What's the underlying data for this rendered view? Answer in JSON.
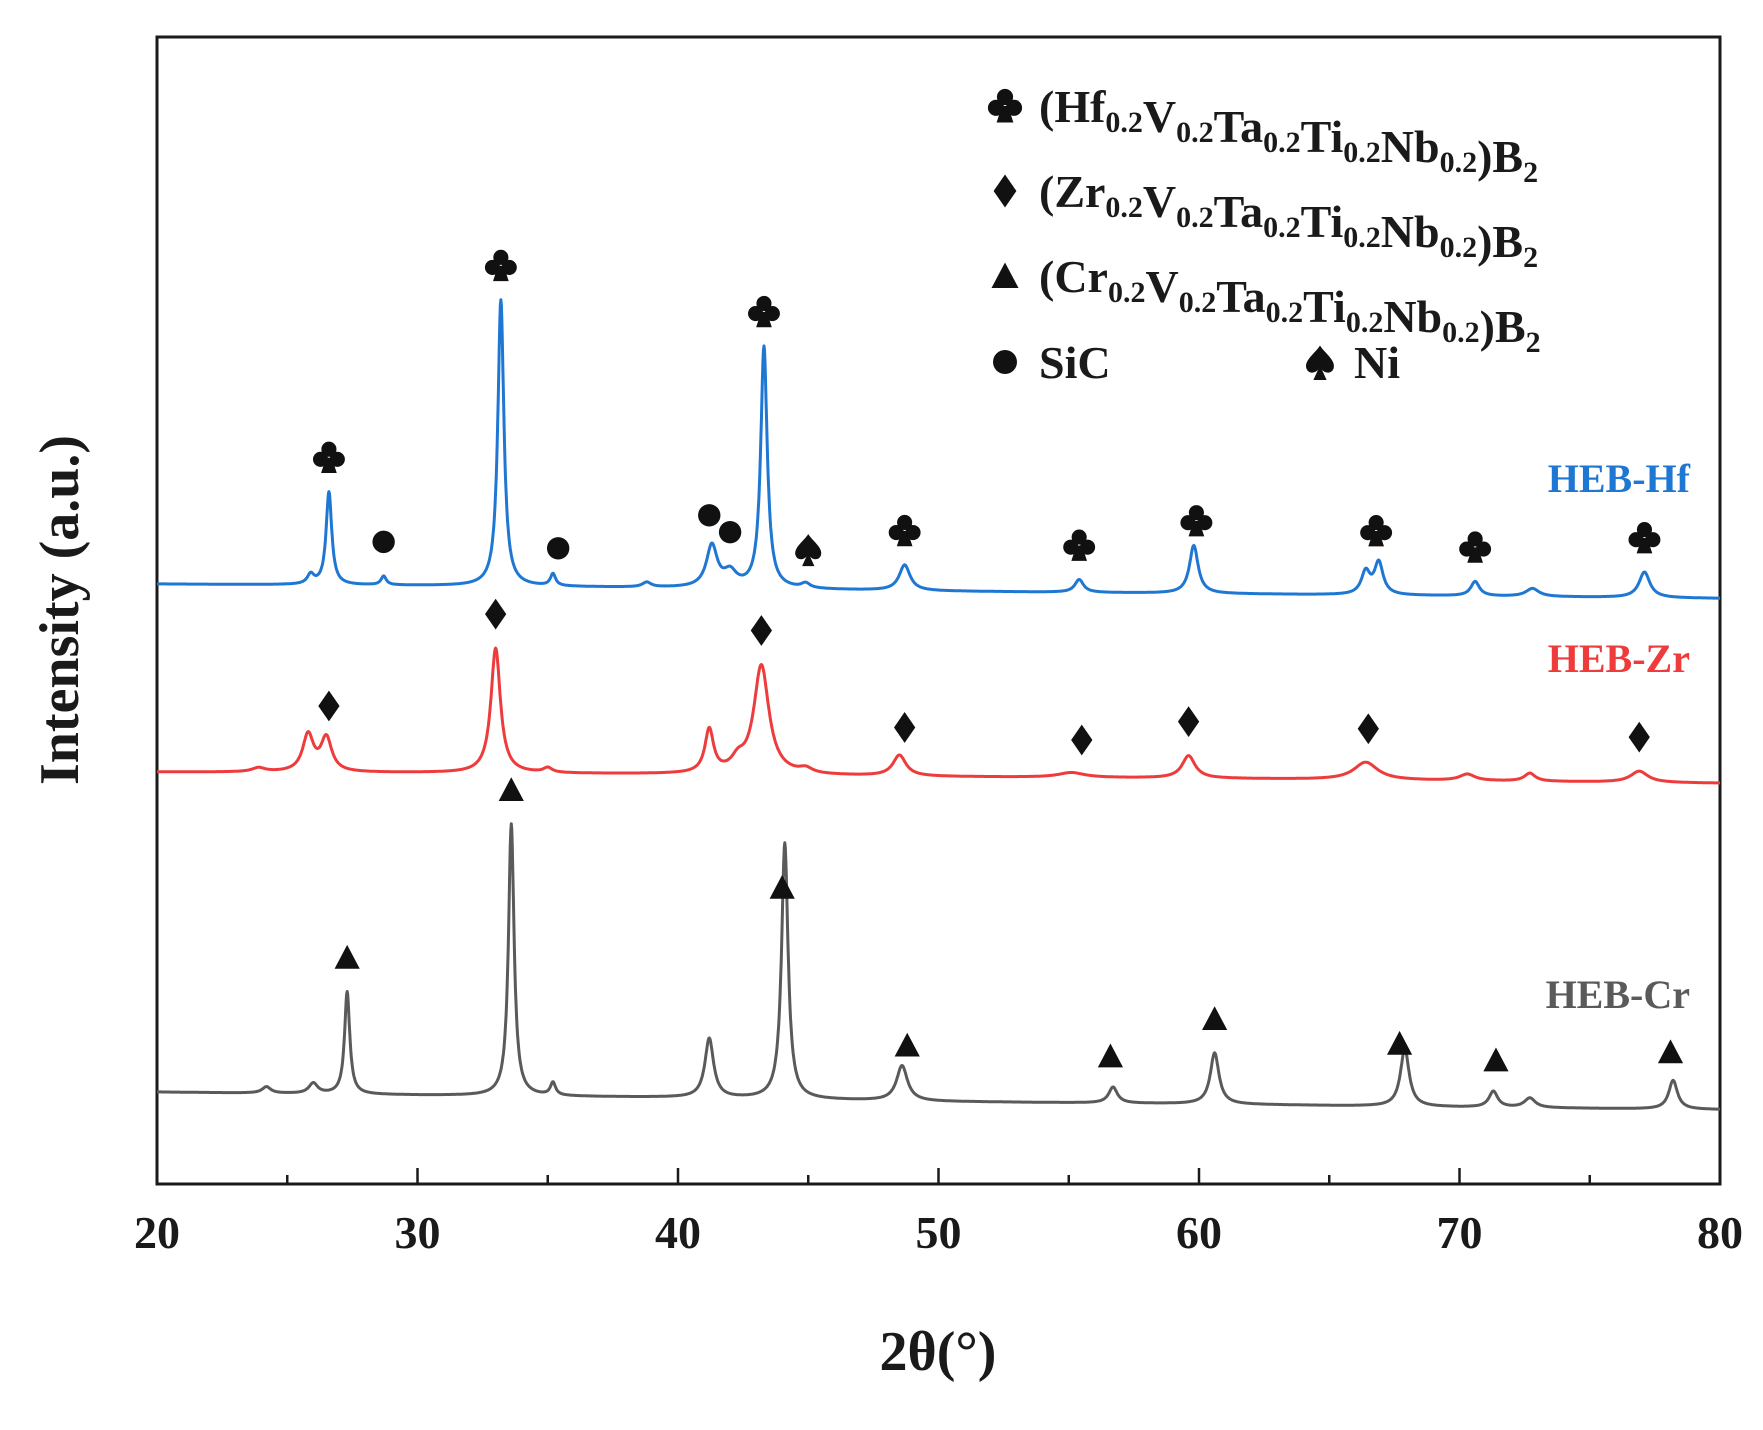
{
  "chart_data": {
    "type": "line",
    "title": "",
    "xlabel": "2θ(°)",
    "ylabel": "Intensity (a.u.)",
    "xlim": [
      20,
      80
    ],
    "xticks": [
      "20",
      "30",
      "40",
      "50",
      "60",
      "70",
      "80"
    ],
    "y_scale": "arbitrary units, curves vertically offset",
    "grid": false,
    "legend_position": "top-right",
    "legend": [
      {
        "marker": "club",
        "label": "(Hf0.2V0.2Ta0.2Ti0.2Nb0.2)B2",
        "parts": [
          [
            "(Hf",
            ""
          ],
          [
            "0.2",
            "sub"
          ],
          [
            "V",
            ""
          ],
          [
            "0.2",
            "sub"
          ],
          [
            "Ta",
            ""
          ],
          [
            "0.2",
            "sub"
          ],
          [
            "Ti",
            ""
          ],
          [
            "0.2",
            "sub"
          ],
          [
            "Nb",
            ""
          ],
          [
            "0.2",
            "sub"
          ],
          [
            ")B",
            ""
          ],
          [
            "2",
            "sub"
          ]
        ]
      },
      {
        "marker": "diamond",
        "label": "(Zr0.2V0.2Ta0.2Ti0.2Nb0.2)B2",
        "parts": [
          [
            "(Zr",
            ""
          ],
          [
            "0.2",
            "sub"
          ],
          [
            "V",
            ""
          ],
          [
            "0.2",
            "sub"
          ],
          [
            "Ta",
            ""
          ],
          [
            "0.2",
            "sub"
          ],
          [
            "Ti",
            ""
          ],
          [
            "0.2",
            "sub"
          ],
          [
            "Nb",
            ""
          ],
          [
            "0.2",
            "sub"
          ],
          [
            ")B",
            ""
          ],
          [
            "2",
            "sub"
          ]
        ]
      },
      {
        "marker": "triangle",
        "label": "(Cr0.2V0.2Ta0.2Ti0.2Nb0.2)B2",
        "parts": [
          [
            "(Cr",
            ""
          ],
          [
            "0.2",
            "sub"
          ],
          [
            "V",
            ""
          ],
          [
            "0.2",
            "sub"
          ],
          [
            "Ta",
            ""
          ],
          [
            "0.2",
            "sub"
          ],
          [
            "Ti",
            ""
          ],
          [
            "0.2",
            "sub"
          ],
          [
            "Nb",
            ""
          ],
          [
            "0.2",
            "sub"
          ],
          [
            ")B",
            ""
          ],
          [
            "2",
            "sub"
          ]
        ]
      },
      {
        "marker": "circle",
        "label": "SiC"
      },
      {
        "marker": "spade",
        "label": "Ni"
      }
    ],
    "series": [
      {
        "name": "HEB-Hf",
        "color": "#1f77d4",
        "baseline": [
          [
            20,
            0.0
          ],
          [
            30,
            -0.1
          ],
          [
            40,
            -0.25
          ],
          [
            50,
            -0.45
          ],
          [
            60,
            -0.6
          ],
          [
            70,
            -0.75
          ],
          [
            80,
            -0.9
          ]
        ],
        "peaks": [
          {
            "x": 25.9,
            "h": 0.6,
            "w": 0.15
          },
          {
            "x": 26.6,
            "h": 5.8,
            "w": 0.13
          },
          {
            "x": 28.7,
            "h": 0.55,
            "w": 0.12
          },
          {
            "x": 33.2,
            "h": 17.9,
            "w": 0.14
          },
          {
            "x": 35.2,
            "h": 0.75,
            "w": 0.12
          },
          {
            "x": 38.8,
            "h": 0.3,
            "w": 0.2
          },
          {
            "x": 41.3,
            "h": 2.6,
            "w": 0.25
          },
          {
            "x": 42.0,
            "h": 0.9,
            "w": 0.3
          },
          {
            "x": 43.3,
            "h": 15.1,
            "w": 0.15
          },
          {
            "x": 44.9,
            "h": 0.3,
            "w": 0.2
          },
          {
            "x": 48.7,
            "h": 1.6,
            "w": 0.25
          },
          {
            "x": 55.4,
            "h": 0.8,
            "w": 0.2
          },
          {
            "x": 59.8,
            "h": 3.0,
            "w": 0.2
          },
          {
            "x": 66.4,
            "h": 1.4,
            "w": 0.2
          },
          {
            "x": 66.9,
            "h": 2.0,
            "w": 0.2
          },
          {
            "x": 70.6,
            "h": 0.9,
            "w": 0.2
          },
          {
            "x": 72.8,
            "h": 0.5,
            "w": 0.3
          },
          {
            "x": 77.1,
            "h": 1.6,
            "w": 0.25
          }
        ],
        "markers": [
          {
            "symbol": "club",
            "x": 26.6
          },
          {
            "symbol": "circle",
            "x": 28.7
          },
          {
            "symbol": "club",
            "x": 33.2
          },
          {
            "symbol": "circle",
            "x": 35.4
          },
          {
            "symbol": "circle",
            "x": 41.2
          },
          {
            "symbol": "circle",
            "x": 42.0
          },
          {
            "symbol": "club",
            "x": 43.3
          },
          {
            "symbol": "spade",
            "x": 45.0
          },
          {
            "symbol": "club",
            "x": 48.7
          },
          {
            "symbol": "club",
            "x": 55.4
          },
          {
            "symbol": "club",
            "x": 59.9
          },
          {
            "symbol": "club",
            "x": 66.8
          },
          {
            "symbol": "club",
            "x": 70.6
          },
          {
            "symbol": "club",
            "x": 77.1
          }
        ]
      },
      {
        "name": "HEB-Zr",
        "color": "#ee3b3b",
        "baseline": [
          [
            20,
            0.0
          ],
          [
            30,
            -0.05
          ],
          [
            40,
            -0.15
          ],
          [
            50,
            -0.3
          ],
          [
            60,
            -0.4
          ],
          [
            70,
            -0.55
          ],
          [
            80,
            -0.7
          ]
        ],
        "peaks": [
          {
            "x": 23.9,
            "h": 0.25,
            "w": 0.3
          },
          {
            "x": 25.8,
            "h": 2.3,
            "w": 0.25
          },
          {
            "x": 26.5,
            "h": 2.1,
            "w": 0.25
          },
          {
            "x": 33.0,
            "h": 7.8,
            "w": 0.22
          },
          {
            "x": 35.0,
            "h": 0.3,
            "w": 0.2
          },
          {
            "x": 41.2,
            "h": 2.7,
            "w": 0.2
          },
          {
            "x": 42.3,
            "h": 0.7,
            "w": 0.3
          },
          {
            "x": 43.2,
            "h": 6.8,
            "w": 0.35
          },
          {
            "x": 44.9,
            "h": 0.3,
            "w": 0.3
          },
          {
            "x": 48.5,
            "h": 1.3,
            "w": 0.3
          },
          {
            "x": 55.1,
            "h": 0.3,
            "w": 0.6
          },
          {
            "x": 59.6,
            "h": 1.4,
            "w": 0.3
          },
          {
            "x": 66.4,
            "h": 1.1,
            "w": 0.55
          },
          {
            "x": 70.3,
            "h": 0.4,
            "w": 0.35
          },
          {
            "x": 72.7,
            "h": 0.5,
            "w": 0.25
          },
          {
            "x": 76.9,
            "h": 0.7,
            "w": 0.4
          }
        ],
        "markers": [
          {
            "symbol": "diamond",
            "x": 26.6
          },
          {
            "symbol": "diamond",
            "x": 33.0
          },
          {
            "symbol": "diamond",
            "x": 43.2
          },
          {
            "symbol": "diamond",
            "x": 48.7
          },
          {
            "symbol": "diamond",
            "x": 55.5
          },
          {
            "symbol": "diamond",
            "x": 59.6
          },
          {
            "symbol": "diamond",
            "x": 66.5
          },
          {
            "symbol": "diamond",
            "x": 76.9
          }
        ]
      },
      {
        "name": "HEB-Cr",
        "color": "#5a5a5a",
        "baseline": [
          [
            20,
            0.0
          ],
          [
            30,
            -0.2
          ],
          [
            40,
            -0.35
          ],
          [
            50,
            -0.6
          ],
          [
            60,
            -0.75
          ],
          [
            70,
            -0.95
          ],
          [
            80,
            -1.1
          ]
        ],
        "peaks": [
          {
            "x": 24.2,
            "h": 0.4,
            "w": 0.2
          },
          {
            "x": 26.0,
            "h": 0.65,
            "w": 0.2
          },
          {
            "x": 27.3,
            "h": 6.4,
            "w": 0.12
          },
          {
            "x": 33.6,
            "h": 17.0,
            "w": 0.13
          },
          {
            "x": 35.2,
            "h": 0.8,
            "w": 0.12
          },
          {
            "x": 41.2,
            "h": 3.7,
            "w": 0.2
          },
          {
            "x": 44.1,
            "h": 16.0,
            "w": 0.15
          },
          {
            "x": 48.6,
            "h": 2.2,
            "w": 0.25
          },
          {
            "x": 56.7,
            "h": 1.0,
            "w": 0.2
          },
          {
            "x": 60.6,
            "h": 3.2,
            "w": 0.2
          },
          {
            "x": 67.9,
            "h": 3.6,
            "w": 0.2
          },
          {
            "x": 71.3,
            "h": 1.0,
            "w": 0.2
          },
          {
            "x": 72.7,
            "h": 0.6,
            "w": 0.25
          },
          {
            "x": 78.2,
            "h": 1.8,
            "w": 0.2
          }
        ],
        "markers": [
          {
            "symbol": "triangle",
            "x": 27.3
          },
          {
            "symbol": "triangle",
            "x": 33.6
          },
          {
            "symbol": "triangle",
            "x": 44.0
          },
          {
            "symbol": "triangle",
            "x": 48.8
          },
          {
            "symbol": "triangle",
            "x": 56.6
          },
          {
            "symbol": "triangle",
            "x": 60.6
          },
          {
            "symbol": "triangle",
            "x": 67.7
          },
          {
            "symbol": "triangle",
            "x": 71.4
          },
          {
            "symbol": "triangle",
            "x": 78.1
          }
        ]
      }
    ]
  }
}
